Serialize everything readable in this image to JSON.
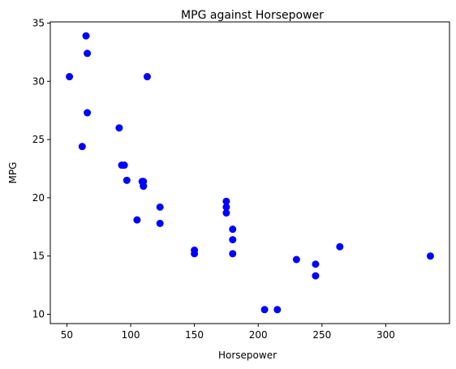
{
  "chart_data": {
    "type": "scatter",
    "title": "MPG against Horsepower",
    "xlabel": "Horsepower",
    "ylabel": "MPG",
    "xlim": [
      37,
      350
    ],
    "ylim": [
      9.2,
      35.1
    ],
    "xticks": [
      50,
      100,
      150,
      200,
      250,
      300
    ],
    "yticks": [
      10,
      15,
      20,
      25,
      30,
      35
    ],
    "grid": false,
    "marker_color": "#0000ff",
    "series": [
      {
        "points": [
          {
            "x": 110,
            "y": 21.0
          },
          {
            "x": 110,
            "y": 21.0
          },
          {
            "x": 93,
            "y": 22.8
          },
          {
            "x": 110,
            "y": 21.4
          },
          {
            "x": 175,
            "y": 18.7
          },
          {
            "x": 105,
            "y": 18.1
          },
          {
            "x": 245,
            "y": 14.3
          },
          {
            "x": 62,
            "y": 24.4
          },
          {
            "x": 95,
            "y": 22.8
          },
          {
            "x": 123,
            "y": 19.2
          },
          {
            "x": 123,
            "y": 17.8
          },
          {
            "x": 180,
            "y": 16.4
          },
          {
            "x": 180,
            "y": 17.3
          },
          {
            "x": 180,
            "y": 15.2
          },
          {
            "x": 205,
            "y": 10.4
          },
          {
            "x": 215,
            "y": 10.4
          },
          {
            "x": 230,
            "y": 14.7
          },
          {
            "x": 66,
            "y": 32.4
          },
          {
            "x": 52,
            "y": 30.4
          },
          {
            "x": 65,
            "y": 33.9
          },
          {
            "x": 97,
            "y": 21.5
          },
          {
            "x": 150,
            "y": 15.5
          },
          {
            "x": 150,
            "y": 15.2
          },
          {
            "x": 245,
            "y": 13.3
          },
          {
            "x": 175,
            "y": 19.2
          },
          {
            "x": 66,
            "y": 27.3
          },
          {
            "x": 91,
            "y": 26.0
          },
          {
            "x": 113,
            "y": 30.4
          },
          {
            "x": 264,
            "y": 15.8
          },
          {
            "x": 175,
            "y": 19.7
          },
          {
            "x": 335,
            "y": 15.0
          },
          {
            "x": 109,
            "y": 21.4
          }
        ]
      }
    ]
  }
}
